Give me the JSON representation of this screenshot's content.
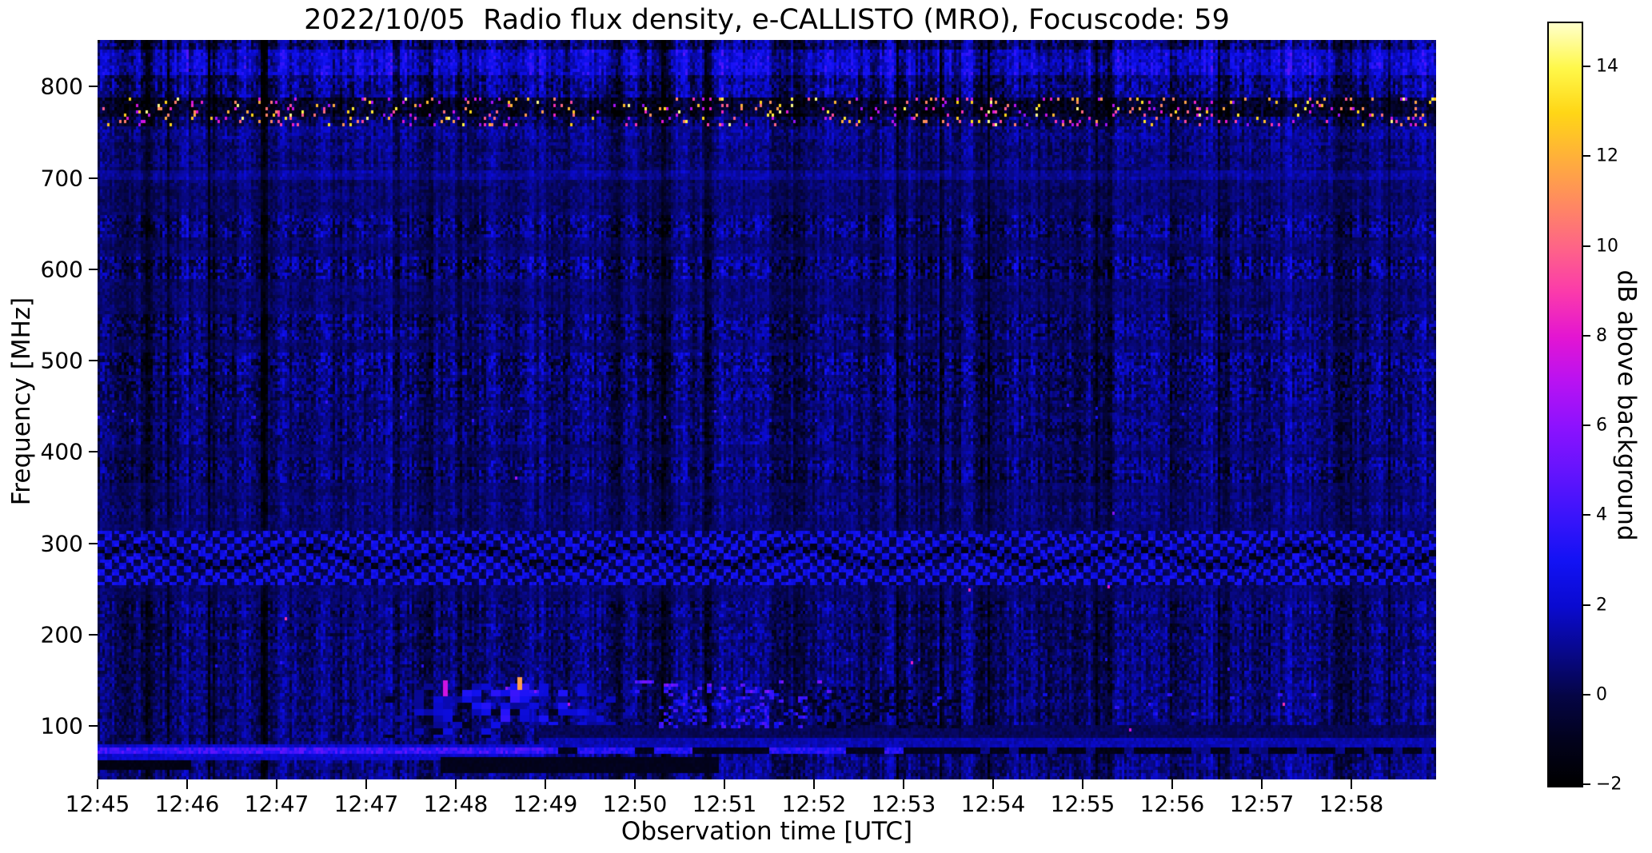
{
  "chart_data": {
    "type": "heatmap",
    "title": "2022/10/05  Radio flux density, e-CALLISTO (MRO), Focuscode: 59",
    "xlabel": "Observation time [UTC]",
    "ylabel": "Frequency [MHz]",
    "grid": false,
    "x_tick_labels": [
      "12:45",
      "12:46",
      "12:47",
      "12:47",
      "12:48",
      "12:49",
      "12:50",
      "12:51",
      "12:52",
      "12:53",
      "12:54",
      "12:55",
      "12:56",
      "12:57",
      "12:58"
    ],
    "y_tick_values": [
      800,
      700,
      600,
      500,
      400,
      300,
      200,
      100
    ],
    "y_tick_labels": [
      "800",
      "700",
      "600",
      "500",
      "400",
      "300",
      "200",
      "100"
    ],
    "ylim": [
      41.5,
      851
    ],
    "colorbar": {
      "label": "dB above background",
      "tick_values": [
        14,
        12,
        10,
        8,
        6,
        4,
        2,
        0,
        -2
      ],
      "tick_labels": [
        "14",
        "12",
        "10",
        "8",
        "6",
        "4",
        "2",
        "0",
        "−2"
      ],
      "range": [
        -2,
        15
      ],
      "colormap": "gnuplot2",
      "stops": [
        [
          -2,
          "#000000"
        ],
        [
          -1,
          "#02021c"
        ],
        [
          0,
          "#050545"
        ],
        [
          1,
          "#08088c"
        ],
        [
          2,
          "#0a0ad0"
        ],
        [
          3,
          "#1212f4"
        ],
        [
          4,
          "#3a14fb"
        ],
        [
          5,
          "#6414fd"
        ],
        [
          6,
          "#8c12fe"
        ],
        [
          7,
          "#b812f2"
        ],
        [
          8,
          "#e315d2"
        ],
        [
          9,
          "#fb3aab"
        ],
        [
          10,
          "#fe6487"
        ],
        [
          11,
          "#ff8a60"
        ],
        [
          12,
          "#ffb03a"
        ],
        [
          13,
          "#ffd616"
        ],
        [
          14,
          "#fff84a"
        ],
        [
          15,
          "#ffffca"
        ]
      ]
    },
    "render": {
      "seed": 7,
      "cell": [
        3,
        4
      ],
      "background_band": {
        "base": 0.55,
        "noise": 0.55,
        "stripe": 0.55
      },
      "bands": [
        {
          "y": [
            0,
            0.014
          ],
          "base": 0.6,
          "noise": 1.3,
          "stripe": 1.5
        },
        {
          "y": [
            0.014,
            0.047
          ],
          "base": 2.0,
          "noise": 1.1,
          "stripe": 1.4
        },
        {
          "y": [
            0.047,
            0.078
          ],
          "base": 0.9,
          "noise": 1.3,
          "stripe": 1.3
        },
        {
          "y": [
            0.078,
            0.105
          ],
          "base": -0.7,
          "noise": 1.1,
          "stripe": 0.9,
          "speck": 0.085
        },
        {
          "y": [
            0.105,
            0.117
          ],
          "base": 0.3,
          "noise": 1.2,
          "stripe": 1.0,
          "speck": 0.09
        },
        {
          "y": [
            0.117,
            0.135
          ],
          "base": 1.0,
          "noise": 0.9,
          "stripe": 0.8
        },
        {
          "y": [
            0.135,
            0.175
          ],
          "base": 0.75,
          "noise": 0.8,
          "stripe": 0.7
        },
        {
          "y": [
            0.178,
            0.192
          ],
          "base": 1.25,
          "noise": 0.5,
          "stripe": 0.5
        },
        {
          "y": [
            0.236,
            0.27
          ],
          "base": 0.7,
          "noise": 1.3,
          "stripe": 1.1
        },
        {
          "y": [
            0.292,
            0.324
          ],
          "base": 0.65,
          "noise": 1.5,
          "stripe": 1.2
        },
        {
          "y": [
            0.373,
            0.405
          ],
          "base": 0.6,
          "noise": 1.3,
          "stripe": 1.0
        },
        {
          "y": [
            0.422,
            0.454
          ],
          "base": 0.65,
          "noise": 1.5,
          "stripe": 1.2
        },
        {
          "y": [
            0.46,
            0.488
          ],
          "base": 0.55,
          "noise": 1.3,
          "stripe": 1.0
        },
        {
          "y": [
            0.49,
            0.52
          ],
          "base": 0.6,
          "noise": 0.8,
          "stripe": 0.7,
          "bluespeck": 0.012
        },
        {
          "y": [
            0.52,
            0.55
          ],
          "base": 0.6,
          "noise": 1.1,
          "stripe": 0.9
        },
        {
          "y": [
            0.568,
            0.603
          ],
          "base": 0.6,
          "noise": 1.2,
          "stripe": 1.0
        },
        {
          "y": [
            0.627,
            0.643
          ],
          "base": 0.7,
          "noise": 0.9,
          "stripe": 0.8
        },
        {
          "y": [
            0.762,
            0.784
          ],
          "base": 0.6,
          "noise": 1.2,
          "stripe": 1.0
        },
        {
          "y": [
            0.791,
            0.811
          ],
          "base": 0.55,
          "noise": 1.2,
          "stripe": 0.9
        },
        {
          "y": [
            0.816,
            0.834
          ],
          "base": 0.6,
          "noise": 1.1,
          "stripe": 0.9
        },
        {
          "y": [
            0.841,
            0.857
          ],
          "base": 0.55,
          "noise": 1.0,
          "stripe": 0.8,
          "bluespeck": 0.008
        },
        {
          "y": [
            0.857,
            0.9276
          ],
          "base": 0.65,
          "noise": 0.95,
          "stripe": 0.9
        },
        {
          "y": [
            0.9276,
            0.96
          ],
          "base": 0.7,
          "noise": 0.9,
          "stripe": 0.8
        },
        {
          "y": [
            0.9703,
            1.001
          ],
          "base": 0.8,
          "noise": 0.9,
          "stripe": 0.9
        }
      ],
      "checker": {
        "y": [
          0.651,
          0.751
        ]
      },
      "burst": {
        "x": [
          0.215,
          0.406
        ],
        "y": [
          0.873,
          0.949
        ]
      },
      "blob_rows": [
        {
          "x": [
            0.33,
            1.0
          ],
          "y": [
            0.9276,
            0.946
          ],
          "prob": 1.01,
          "val": [
            -0.1,
            0.6
          ]
        },
        {
          "x": [
            0.33,
            1.0
          ],
          "y": [
            0.946,
            0.9616
          ],
          "prob": 1.01,
          "val": [
            1.1,
            2.0
          ]
        },
        {
          "x": [
            0.42,
            0.535
          ],
          "y": [
            0.879,
            0.935
          ],
          "prob": 0.3,
          "val": [
            2.0,
            4.6
          ]
        },
        {
          "x": [
            0.53,
            0.645
          ],
          "y": [
            0.879,
            0.935
          ],
          "prob": 0.3,
          "val": [
            -1.4,
            -0.6
          ]
        },
        {
          "x": [
            0.3,
            0.56
          ],
          "y": [
            0.871,
            0.886
          ],
          "prob": 0.1,
          "val": [
            3.5,
            6.0
          ]
        },
        {
          "x": [
            0.5,
            1.0
          ],
          "y": [
            0.885,
            0.915
          ],
          "prob": 0.012,
          "val": [
            2.5,
            4.2
          ]
        }
      ],
      "bright_line": {
        "y": [
          0.9616,
          0.9703
        ],
        "bright_end": 0.333,
        "seg_end": 0.644
      },
      "dark_patches": [
        {
          "x": [
            0,
            0.069
          ],
          "y": [
            0.976,
            0.991
          ],
          "val": -1.5
        },
        {
          "x": [
            0.257,
            0.464
          ],
          "y": [
            0.973,
            0.993
          ],
          "val": -1.2
        }
      ],
      "dashes": [
        {
          "x": 0.26,
          "y": [
            0.87,
            0.889
          ],
          "val": 7.5
        },
        {
          "x": 0.3155,
          "y": [
            0.863,
            0.884
          ],
          "val": 11.5
        }
      ]
    }
  }
}
